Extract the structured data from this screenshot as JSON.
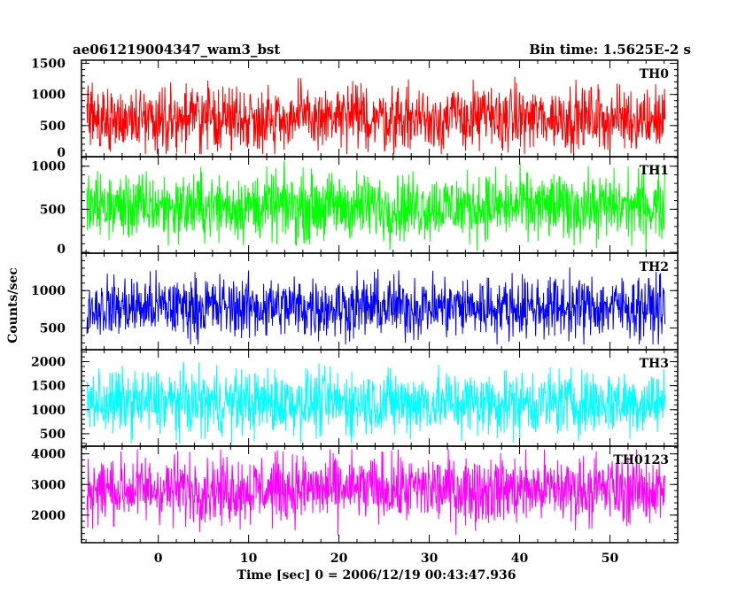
{
  "header": {
    "title": "ae061219004347_wam3_bst",
    "bin_time": "Bin time: 1.5625E-2 s"
  },
  "chart_data": {
    "type": "line",
    "xlabel": "Time [sec] 0 = 2006/12/19 00:43:47.936",
    "ylabel": "Counts/sec",
    "xlim": [
      -8.5,
      57.5
    ],
    "x_data_range": [
      -7.9,
      56.1
    ],
    "x_ticks": [
      0,
      10,
      20,
      30,
      40,
      50
    ],
    "x_minor_step": 2,
    "grid": false,
    "panels": [
      {
        "name": "TH0",
        "color": "#ff0000",
        "ylim": [
          0,
          1550
        ],
        "ticks": [
          0,
          500,
          1000,
          1500
        ],
        "minor_step": 100,
        "mean": 620,
        "low": 40,
        "high": 1430
      },
      {
        "name": "TH1",
        "color": "#00ff00",
        "ylim": [
          -10,
          1110
        ],
        "ticks": [
          0,
          500,
          1000
        ],
        "minor_step": 100,
        "mean": 530,
        "low": 20,
        "high": 1070
      },
      {
        "name": "TH2",
        "color": "#0000ff",
        "ylim": [
          210,
          1500
        ],
        "ticks": [
          500,
          1000
        ],
        "minor_step": 100,
        "mean": 780,
        "low": 280,
        "high": 1400
      },
      {
        "name": "TH3",
        "color": "#00ffff",
        "ylim": [
          240,
          2250
        ],
        "ticks": [
          500,
          1000,
          1500,
          2000
        ],
        "minor_step": 100,
        "mean": 1150,
        "low": 300,
        "high": 2150
      },
      {
        "name": "TH0123",
        "color": "#ff00ff",
        "ylim": [
          1100,
          4250
        ],
        "ticks": [
          2000,
          3000,
          4000
        ],
        "minor_step": 200,
        "mean": 2850,
        "low": 1150,
        "high": 4150
      }
    ]
  }
}
